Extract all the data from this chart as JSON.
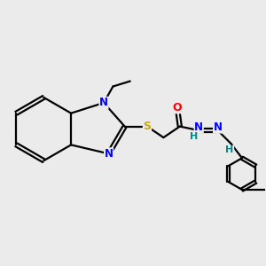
{
  "bg_color": "#ebebeb",
  "atom_colors": {
    "N": "#0000ff",
    "S": "#ccaa00",
    "O": "#ff0000",
    "H": "#008b8b",
    "C": "#000000"
  },
  "bond_color": "#000000",
  "bond_width": 1.6,
  "figsize": [
    3.0,
    3.0
  ],
  "dpi": 100
}
